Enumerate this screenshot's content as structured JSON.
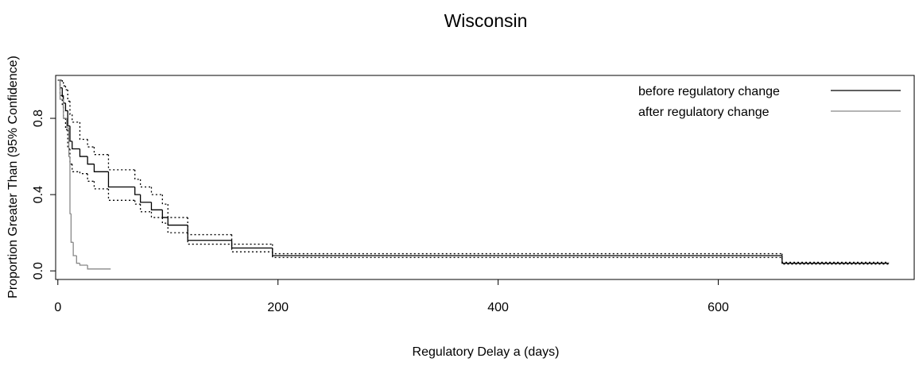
{
  "chart_data": {
    "type": "step",
    "title": "Wisconsin",
    "x_label": "Regulatory Delay a (days)",
    "y_label": "Proportion Greater Than (95% Confidence)",
    "xlim": [
      -2,
      778
    ],
    "ylim": [
      -0.045,
      1.025
    ],
    "xticks": [
      0,
      200,
      400,
      600
    ],
    "yticks": [
      {
        "value": 0,
        "label": "0.0"
      },
      0.4,
      0.8
    ],
    "legend": "top-right",
    "series": [
      {
        "name": "before regulatory change",
        "color": "#000000",
        "x": [
          0,
          2,
          4,
          5,
          7,
          9,
          11,
          13,
          20,
          27,
          33,
          46,
          70,
          75,
          85,
          95,
          100,
          118,
          158,
          195,
          658,
          755
        ],
        "values": [
          1.0,
          0.96,
          0.92,
          0.88,
          0.84,
          0.76,
          0.68,
          0.64,
          0.6,
          0.56,
          0.52,
          0.44,
          0.4,
          0.36,
          0.32,
          0.28,
          0.24,
          0.16,
          0.12,
          0.08,
          0.04,
          0.04
        ],
        "upper": [
          1.0,
          1.0,
          0.99,
          0.97,
          0.95,
          0.89,
          0.82,
          0.78,
          0.69,
          0.65,
          0.61,
          0.53,
          0.48,
          0.44,
          0.4,
          0.35,
          0.28,
          0.19,
          0.14,
          0.09,
          0.045,
          0.045
        ],
        "lower": [
          1.0,
          0.92,
          0.86,
          0.8,
          0.74,
          0.64,
          0.56,
          0.52,
          0.51,
          0.47,
          0.43,
          0.37,
          0.35,
          0.31,
          0.28,
          0.25,
          0.2,
          0.14,
          0.1,
          0.07,
          0.035,
          0.035
        ]
      },
      {
        "name": "after regulatory change",
        "color": "#888888",
        "x": [
          0,
          2,
          5,
          8,
          10,
          11,
          12,
          14,
          17,
          20,
          27,
          48
        ],
        "values": [
          1.0,
          0.9,
          0.8,
          0.75,
          0.6,
          0.3,
          0.15,
          0.08,
          0.04,
          0.03,
          0.01,
          0.01
        ]
      }
    ]
  }
}
